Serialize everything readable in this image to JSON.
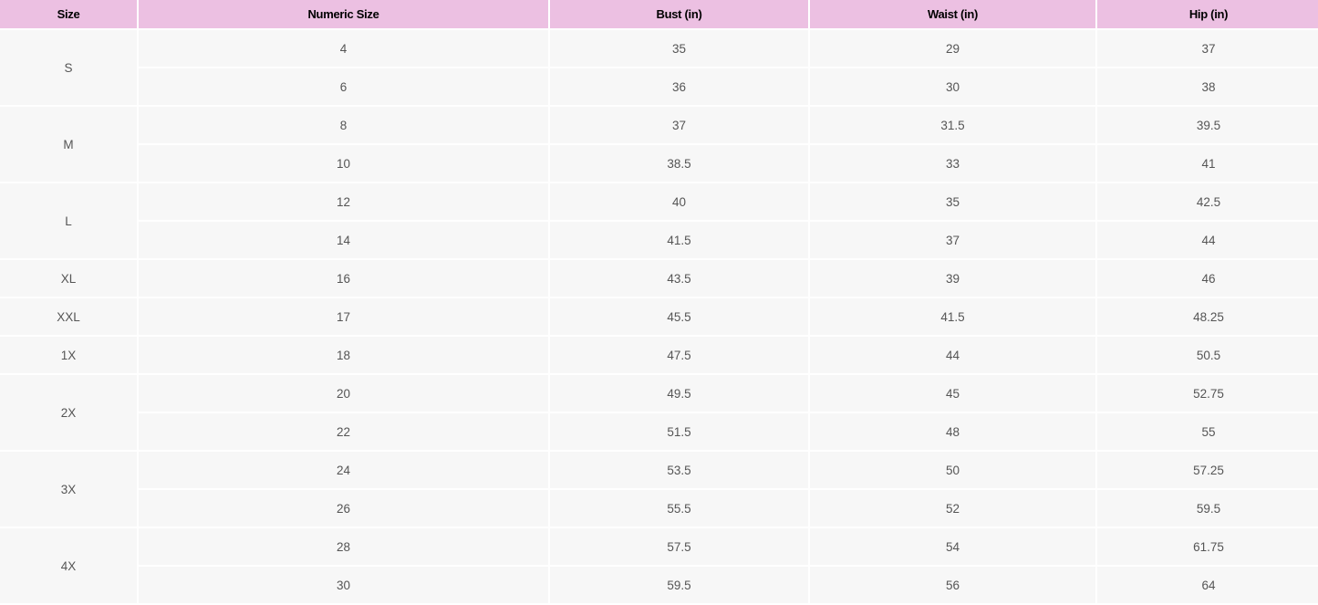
{
  "headers": [
    "Size",
    "Numeric Size",
    "Bust (in)",
    "Waist (in)",
    "Hip (in)"
  ],
  "groups": [
    {
      "size": "S",
      "rows": [
        [
          "4",
          "35",
          "29",
          "37"
        ],
        [
          "6",
          "36",
          "30",
          "38"
        ]
      ]
    },
    {
      "size": "M",
      "rows": [
        [
          "8",
          "37",
          "31.5",
          "39.5"
        ],
        [
          "10",
          "38.5",
          "33",
          "41"
        ]
      ]
    },
    {
      "size": "L",
      "rows": [
        [
          "12",
          "40",
          "35",
          "42.5"
        ],
        [
          "14",
          "41.5",
          "37",
          "44"
        ]
      ]
    },
    {
      "size": "XL",
      "rows": [
        [
          "16",
          "43.5",
          "39",
          "46"
        ]
      ]
    },
    {
      "size": "XXL",
      "rows": [
        [
          "17",
          "45.5",
          "41.5",
          "48.25"
        ]
      ]
    },
    {
      "size": "1X",
      "rows": [
        [
          "18",
          "47.5",
          "44",
          "50.5"
        ]
      ]
    },
    {
      "size": "2X",
      "rows": [
        [
          "20",
          "49.5",
          "45",
          "52.75"
        ],
        [
          "22",
          "51.5",
          "48",
          "55"
        ]
      ]
    },
    {
      "size": "3X",
      "rows": [
        [
          "24",
          "53.5",
          "50",
          "57.25"
        ],
        [
          "26",
          "55.5",
          "52",
          "59.5"
        ]
      ]
    },
    {
      "size": "4X",
      "rows": [
        [
          "28",
          "57.5",
          "54",
          "61.75"
        ],
        [
          "30",
          "59.5",
          "56",
          "64"
        ]
      ]
    }
  ],
  "colors": {
    "header_bg": "#ecc0e2",
    "cell_bg": "#f7f7f7"
  }
}
